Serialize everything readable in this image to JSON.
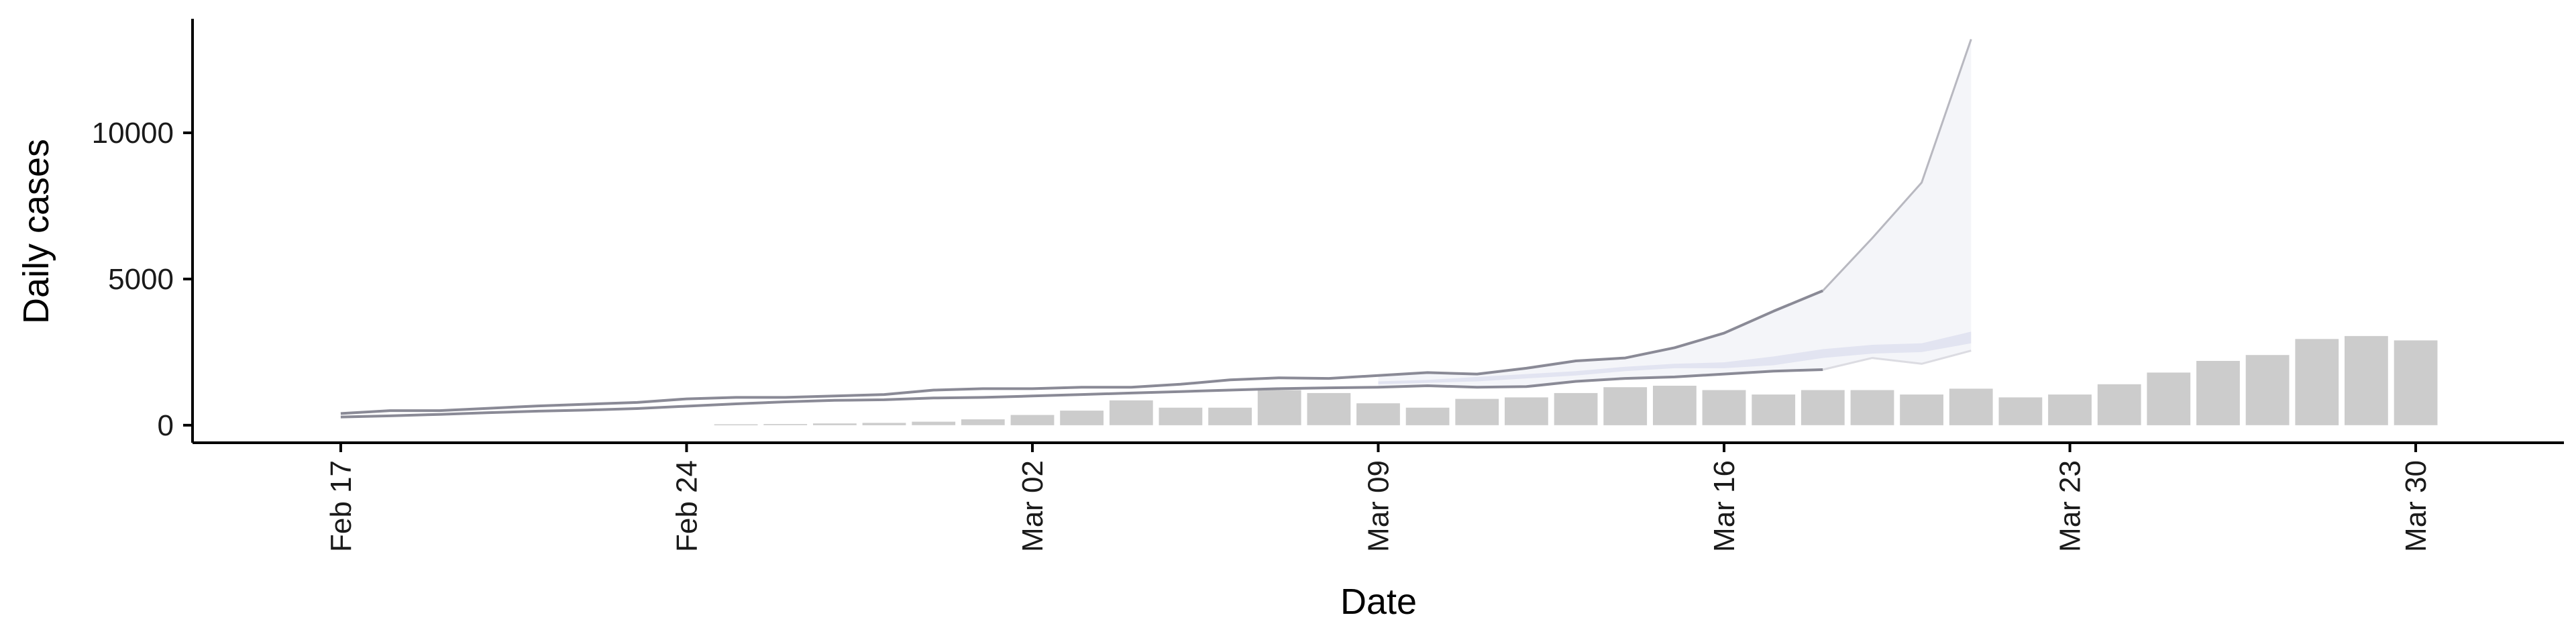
{
  "chart_data": {
    "type": "bar",
    "xlabel": "Date",
    "ylabel": "Daily cases",
    "x_tick_labels": [
      "Feb 17",
      "Feb 24",
      "Mar 02",
      "Mar 09",
      "Mar 16",
      "Mar 23",
      "Mar 30"
    ],
    "x_tick_dates": [
      "2020-02-17",
      "2020-02-24",
      "2020-03-02",
      "2020-03-09",
      "2020-03-16",
      "2020-03-23",
      "2020-03-30"
    ],
    "xlim": [
      "2020-02-14",
      "2020-04-02"
    ],
    "y_tick_labels": [
      "0",
      "5000",
      "10000"
    ],
    "y_ticks": [
      0,
      5000,
      10000
    ],
    "ylim": [
      -600,
      13900
    ],
    "grid": false,
    "legend": "none",
    "colors": {
      "bars": "#cccccc",
      "line_dark": "#8a8a96",
      "line_light": "#b8b8c0",
      "line_faint": "#dcdce2",
      "band_inner": "#dcdeee",
      "band_outer": "#f2f3f8"
    },
    "bars": {
      "dates": [
        "2020-02-25",
        "2020-02-26",
        "2020-02-27",
        "2020-02-28",
        "2020-02-29",
        "2020-03-01",
        "2020-03-02",
        "2020-03-03",
        "2020-03-04",
        "2020-03-05",
        "2020-03-06",
        "2020-03-07",
        "2020-03-08",
        "2020-03-09",
        "2020-03-10",
        "2020-03-11",
        "2020-03-12",
        "2020-03-13",
        "2020-03-14",
        "2020-03-15",
        "2020-03-16",
        "2020-03-17",
        "2020-03-18",
        "2020-03-19",
        "2020-03-20",
        "2020-03-21",
        "2020-03-22",
        "2020-03-23",
        "2020-03-24",
        "2020-03-25",
        "2020-03-26",
        "2020-03-27",
        "2020-03-28",
        "2020-03-29",
        "2020-03-30"
      ],
      "values": [
        30,
        40,
        60,
        80,
        120,
        200,
        350,
        500,
        850,
        600,
        600,
        1200,
        1100,
        750,
        600,
        900,
        950,
        1100,
        1300,
        1350,
        1200,
        1050,
        1200,
        1200,
        1050,
        1250,
        950,
        1050,
        1400,
        1800,
        2200,
        2400,
        2950,
        3050,
        2900
      ]
    },
    "series": [
      {
        "dates": [
          "2020-02-17",
          "2020-02-18",
          "2020-02-19",
          "2020-02-20",
          "2020-02-21",
          "2020-02-22",
          "2020-02-23",
          "2020-02-24",
          "2020-02-25",
          "2020-02-26",
          "2020-02-27",
          "2020-02-28",
          "2020-02-29",
          "2020-03-01",
          "2020-03-02",
          "2020-03-03",
          "2020-03-04",
          "2020-03-05",
          "2020-03-06",
          "2020-03-07",
          "2020-03-08",
          "2020-03-09",
          "2020-03-10",
          "2020-03-11",
          "2020-03-12",
          "2020-03-13",
          "2020-03-14",
          "2020-03-15",
          "2020-03-16",
          "2020-03-17",
          "2020-03-18"
        ],
        "values": [
          400,
          500,
          500,
          580,
          660,
          720,
          780,
          900,
          950,
          950,
          1000,
          1050,
          1200,
          1250,
          1250,
          1300,
          1300,
          1400,
          1550,
          1620,
          1600,
          1700,
          1800,
          1750,
          1950,
          2200,
          2300,
          2650,
          3150,
          3900,
          4600
        ]
      },
      {
        "dates": [
          "2020-02-17",
          "2020-02-18",
          "2020-02-19",
          "2020-02-20",
          "2020-02-21",
          "2020-02-22",
          "2020-02-23",
          "2020-02-24",
          "2020-02-25",
          "2020-02-26",
          "2020-02-27",
          "2020-02-28",
          "2020-02-29",
          "2020-03-01",
          "2020-03-02",
          "2020-03-03",
          "2020-03-04",
          "2020-03-05",
          "2020-03-06",
          "2020-03-07",
          "2020-03-08",
          "2020-03-09",
          "2020-03-10",
          "2020-03-11",
          "2020-03-12",
          "2020-03-13",
          "2020-03-14",
          "2020-03-15",
          "2020-03-16",
          "2020-03-17",
          "2020-03-18"
        ],
        "values": [
          280,
          320,
          370,
          430,
          480,
          520,
          570,
          650,
          730,
          800,
          850,
          870,
          930,
          950,
          1000,
          1050,
          1100,
          1150,
          1200,
          1250,
          1280,
          1300,
          1350,
          1300,
          1320,
          1500,
          1600,
          1650,
          1750,
          1850,
          1900
        ]
      },
      {
        "dates": [
          "2020-03-18",
          "2020-03-19",
          "2020-03-20",
          "2020-03-21"
        ],
        "values": [
          4600,
          6400,
          8300,
          13200
        ]
      },
      {
        "dates": [
          "2020-03-18",
          "2020-03-19",
          "2020-03-20",
          "2020-03-21"
        ],
        "values": [
          1900,
          2300,
          2100,
          2550
        ]
      }
    ],
    "bands": [
      {
        "dates": [
          "2020-03-09",
          "2020-03-10",
          "2020-03-11",
          "2020-03-12",
          "2020-03-13",
          "2020-03-14",
          "2020-03-15",
          "2020-03-16",
          "2020-03-17",
          "2020-03-18",
          "2020-03-19",
          "2020-03-20",
          "2020-03-21"
        ],
        "lower": [
          1300,
          1350,
          1300,
          1320,
          1500,
          1600,
          1650,
          1750,
          1850,
          1900,
          2300,
          2100,
          2550
        ],
        "upper": [
          1700,
          1800,
          1750,
          1950,
          2200,
          2300,
          2650,
          3150,
          3900,
          4600,
          6400,
          8300,
          13200
        ]
      },
      {
        "dates": [
          "2020-03-09",
          "2020-03-10",
          "2020-03-11",
          "2020-03-12",
          "2020-03-13",
          "2020-03-14",
          "2020-03-15",
          "2020-03-16",
          "2020-03-17",
          "2020-03-18",
          "2020-03-19",
          "2020-03-20",
          "2020-03-21"
        ],
        "lower": [
          1400,
          1450,
          1500,
          1600,
          1700,
          1850,
          1950,
          1950,
          2050,
          2300,
          2450,
          2500,
          2800
        ],
        "upper": [
          1500,
          1550,
          1650,
          1750,
          1850,
          2000,
          2100,
          2150,
          2350,
          2600,
          2750,
          2800,
          3200
        ]
      }
    ]
  }
}
